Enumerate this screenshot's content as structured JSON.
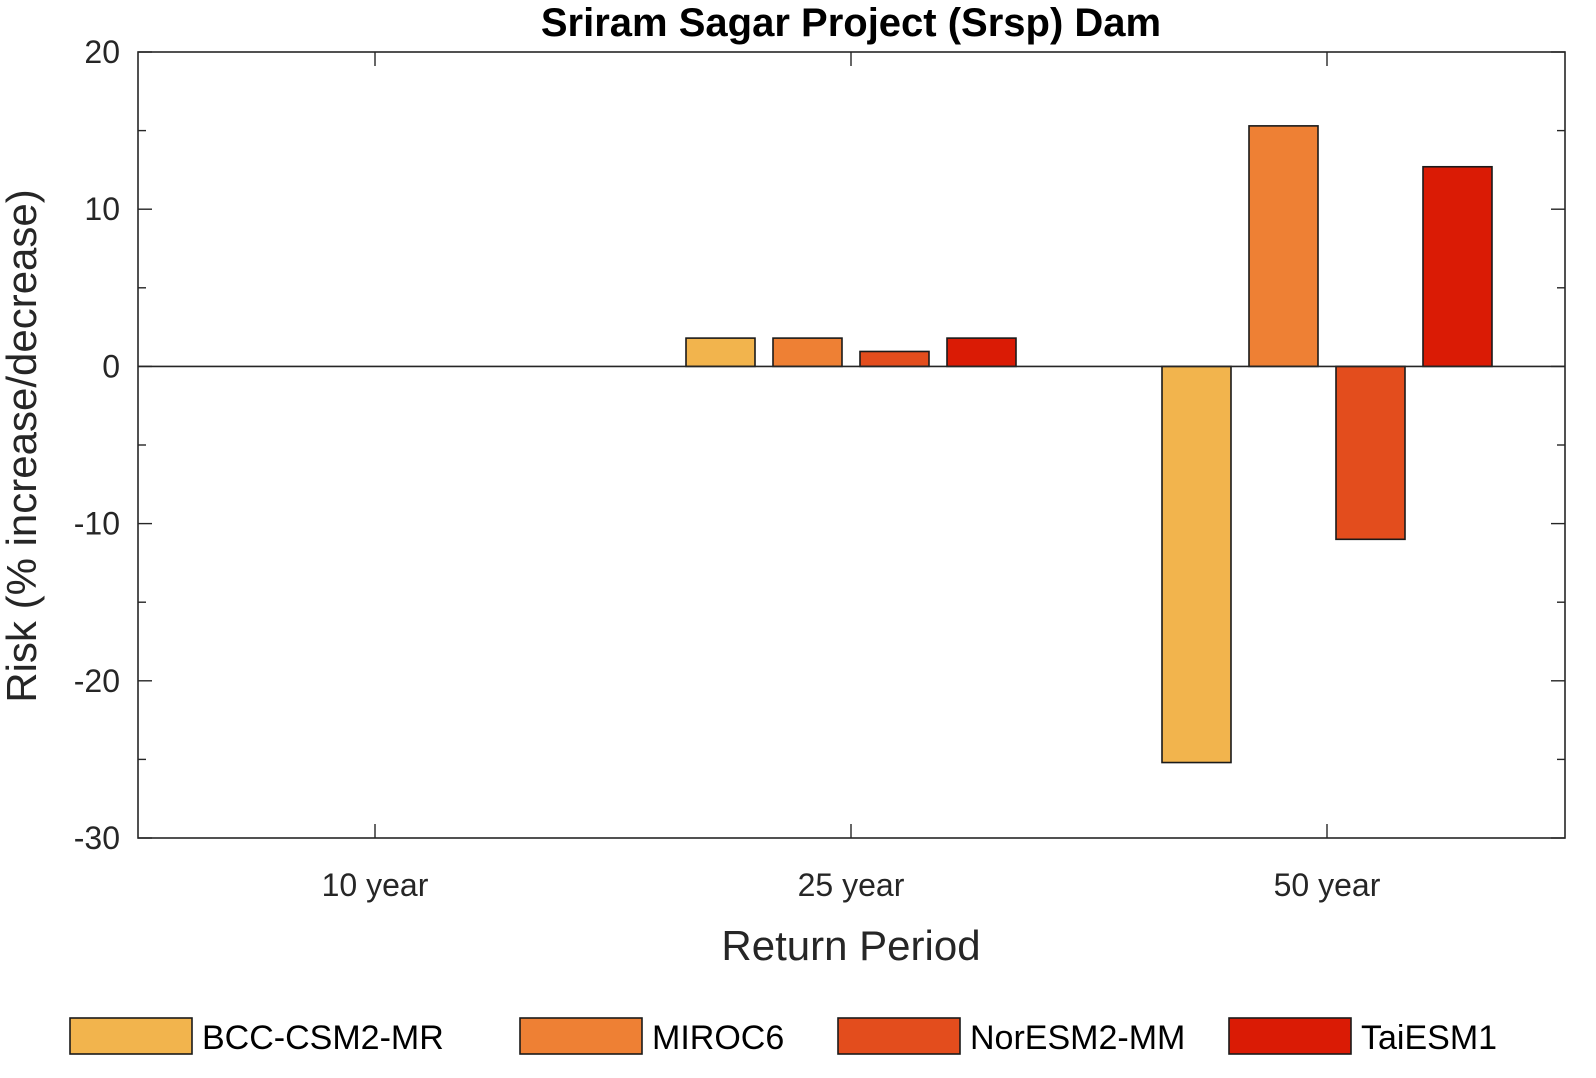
{
  "chart_data": {
    "type": "bar",
    "title": "Sriram Sagar Project (Srsp) Dam",
    "xlabel": "Return Period",
    "ylabel": "Risk (% increase/decrease)",
    "categories": [
      "10 year",
      "25 year",
      "50 year"
    ],
    "ylim": [
      -30,
      20
    ],
    "yticks": [
      20,
      10,
      0,
      -10,
      -20,
      -30
    ],
    "grid": false,
    "legend_position": "bottom",
    "series": [
      {
        "name": "BCC-CSM2-MR",
        "color": "#F2B44D",
        "values": [
          0,
          1.8,
          -25.2
        ]
      },
      {
        "name": "MIROC6",
        "color": "#EE8034",
        "values": [
          0,
          1.8,
          15.3
        ]
      },
      {
        "name": "NorESM2-MM",
        "color": "#E34D1D",
        "values": [
          0,
          0.95,
          -11
        ]
      },
      {
        "name": "TaiESM1",
        "color": "#DA1B05",
        "values": [
          0,
          1.8,
          12.7
        ]
      }
    ]
  }
}
